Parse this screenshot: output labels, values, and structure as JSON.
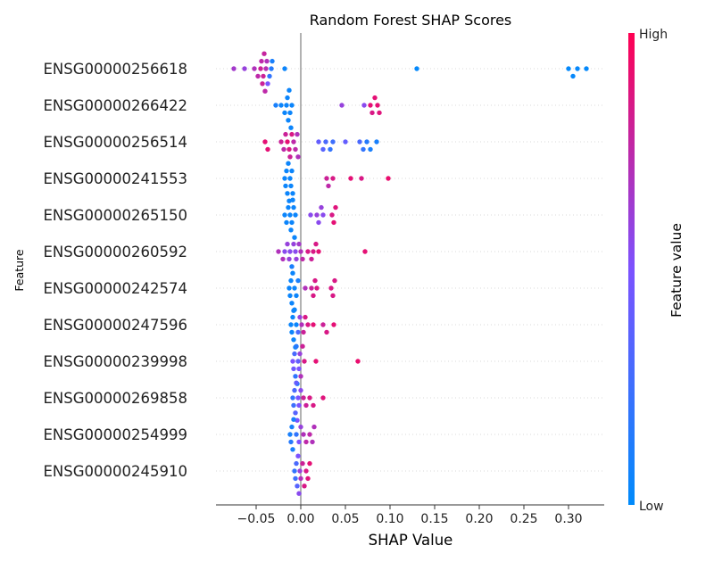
{
  "chart_data": {
    "type": "scatter",
    "title": "Random Forest SHAP Scores",
    "xlabel": "SHAP Value",
    "ylabel": "Feature",
    "xlim": [
      -0.095,
      0.34
    ],
    "xticks": [
      -0.05,
      0.0,
      0.05,
      0.1,
      0.15,
      0.2,
      0.25,
      0.3
    ],
    "xtick_labels": [
      "−0.05",
      "0.00",
      "0.05",
      "0.10",
      "0.15",
      "0.20",
      "0.25",
      "0.30"
    ],
    "colorbar": {
      "label": "Feature value",
      "high": "High",
      "low": "Low",
      "low_color": "#008bfb",
      "high_color": "#ff0052"
    },
    "baseline_x": 0.0,
    "grid": false,
    "features": [
      {
        "name": "ENSG00000256618",
        "points": [
          [
            -0.075,
            0.65
          ],
          [
            -0.063,
            0.6
          ],
          [
            -0.052,
            0.7
          ],
          [
            -0.048,
            0.75
          ],
          [
            -0.045,
            0.8
          ],
          [
            -0.044,
            0.75
          ],
          [
            -0.043,
            0.8
          ],
          [
            -0.042,
            0.8
          ],
          [
            -0.041,
            0.78
          ],
          [
            -0.04,
            0.75
          ],
          [
            -0.039,
            0.72
          ],
          [
            -0.038,
            0.7
          ],
          [
            -0.037,
            0.5
          ],
          [
            -0.035,
            0.2
          ],
          [
            -0.033,
            0.15
          ],
          [
            -0.032,
            0.1
          ],
          [
            -0.018,
            0.05
          ],
          [
            0.13,
            0.02
          ],
          [
            0.3,
            0.02
          ],
          [
            0.305,
            0.03
          ],
          [
            0.31,
            0.03
          ],
          [
            0.32,
            0.02
          ]
        ]
      },
      {
        "name": "ENSG00000266422",
        "points": [
          [
            -0.028,
            0.1
          ],
          [
            -0.022,
            0.05
          ],
          [
            -0.018,
            0.05
          ],
          [
            -0.016,
            0.05
          ],
          [
            -0.015,
            0.05
          ],
          [
            -0.014,
            0.05
          ],
          [
            -0.013,
            0.05
          ],
          [
            -0.012,
            0.05
          ],
          [
            -0.011,
            0.05
          ],
          [
            -0.01,
            0.05
          ],
          [
            0.046,
            0.6
          ],
          [
            0.071,
            0.55
          ],
          [
            0.078,
            0.9
          ],
          [
            0.08,
            0.85
          ],
          [
            0.083,
            0.9
          ],
          [
            0.086,
            0.9
          ],
          [
            0.088,
            0.88
          ]
        ]
      },
      {
        "name": "ENSG00000256514",
        "points": [
          [
            -0.04,
            0.9
          ],
          [
            -0.037,
            0.9
          ],
          [
            -0.022,
            0.8
          ],
          [
            -0.019,
            0.75
          ],
          [
            -0.017,
            0.8
          ],
          [
            -0.015,
            0.9
          ],
          [
            -0.013,
            0.85
          ],
          [
            -0.012,
            0.8
          ],
          [
            -0.01,
            0.85
          ],
          [
            -0.008,
            0.75
          ],
          [
            -0.006,
            0.75
          ],
          [
            -0.004,
            0.7
          ],
          [
            -0.003,
            0.7
          ],
          [
            0.02,
            0.4
          ],
          [
            0.025,
            0.35
          ],
          [
            0.028,
            0.3
          ],
          [
            0.033,
            0.2
          ],
          [
            0.036,
            0.25
          ],
          [
            0.05,
            0.4
          ],
          [
            0.066,
            0.3
          ],
          [
            0.07,
            0.2
          ],
          [
            0.074,
            0.15
          ],
          [
            0.078,
            0.1
          ],
          [
            0.085,
            0.1
          ]
        ]
      },
      {
        "name": "ENSG00000241553",
        "points": [
          [
            -0.018,
            0.05
          ],
          [
            -0.017,
            0.05
          ],
          [
            -0.016,
            0.05
          ],
          [
            -0.015,
            0.05
          ],
          [
            -0.014,
            0.05
          ],
          [
            -0.013,
            0.05
          ],
          [
            -0.012,
            0.05
          ],
          [
            -0.011,
            0.05
          ],
          [
            -0.01,
            0.05
          ],
          [
            -0.009,
            0.05
          ],
          [
            0.029,
            0.8
          ],
          [
            0.031,
            0.75
          ],
          [
            0.036,
            0.85
          ],
          [
            0.056,
            0.9
          ],
          [
            0.068,
            0.85
          ],
          [
            0.098,
            0.92
          ]
        ]
      },
      {
        "name": "ENSG00000265150",
        "points": [
          [
            -0.018,
            0.05
          ],
          [
            -0.016,
            0.05
          ],
          [
            -0.014,
            0.05
          ],
          [
            -0.012,
            0.05
          ],
          [
            -0.011,
            0.05
          ],
          [
            -0.01,
            0.05
          ],
          [
            -0.009,
            0.05
          ],
          [
            -0.008,
            0.05
          ],
          [
            -0.007,
            0.05
          ],
          [
            -0.006,
            0.05
          ],
          [
            0.011,
            0.55
          ],
          [
            0.018,
            0.6
          ],
          [
            0.02,
            0.55
          ],
          [
            0.023,
            0.6
          ],
          [
            0.025,
            0.55
          ],
          [
            0.035,
            0.85
          ],
          [
            0.037,
            0.9
          ],
          [
            0.039,
            0.88
          ]
        ]
      },
      {
        "name": "ENSG00000260592",
        "points": [
          [
            -0.025,
            0.7
          ],
          [
            -0.02,
            0.7
          ],
          [
            -0.018,
            0.55
          ],
          [
            -0.015,
            0.6
          ],
          [
            -0.013,
            0.6
          ],
          [
            -0.012,
            0.55
          ],
          [
            -0.01,
            0.1
          ],
          [
            -0.008,
            0.6
          ],
          [
            -0.006,
            0.55
          ],
          [
            -0.005,
            0.6
          ],
          [
            -0.002,
            0.65
          ],
          [
            0.0,
            0.7
          ],
          [
            0.002,
            0.75
          ],
          [
            0.008,
            0.85
          ],
          [
            0.012,
            0.8
          ],
          [
            0.014,
            0.85
          ],
          [
            0.017,
            0.85
          ],
          [
            0.02,
            0.9
          ],
          [
            0.072,
            0.9
          ]
        ]
      },
      {
        "name": "ENSG00000242574",
        "points": [
          [
            -0.013,
            0.05
          ],
          [
            -0.012,
            0.05
          ],
          [
            -0.011,
            0.05
          ],
          [
            -0.01,
            0.05
          ],
          [
            -0.009,
            0.05
          ],
          [
            -0.008,
            0.05
          ],
          [
            -0.007,
            0.05
          ],
          [
            -0.005,
            0.05
          ],
          [
            -0.003,
            0.1
          ],
          [
            0.005,
            0.7
          ],
          [
            0.012,
            0.8
          ],
          [
            0.014,
            0.85
          ],
          [
            0.016,
            0.85
          ],
          [
            0.018,
            0.85
          ],
          [
            0.034,
            0.85
          ],
          [
            0.036,
            0.85
          ],
          [
            0.038,
            0.85
          ]
        ]
      },
      {
        "name": "ENSG00000247596",
        "points": [
          [
            -0.011,
            0.05
          ],
          [
            -0.01,
            0.05
          ],
          [
            -0.009,
            0.05
          ],
          [
            -0.008,
            0.05
          ],
          [
            -0.007,
            0.05
          ],
          [
            -0.006,
            0.05
          ],
          [
            -0.005,
            0.05
          ],
          [
            -0.003,
            0.3
          ],
          [
            -0.001,
            0.6
          ],
          [
            0.001,
            0.7
          ],
          [
            0.003,
            0.8
          ],
          [
            0.005,
            0.85
          ],
          [
            0.008,
            0.85
          ],
          [
            0.014,
            0.9
          ],
          [
            0.025,
            0.8
          ],
          [
            0.029,
            0.85
          ],
          [
            0.037,
            0.9
          ]
        ]
      },
      {
        "name": "ENSG00000239998",
        "points": [
          [
            -0.009,
            0.5
          ],
          [
            -0.008,
            0.45
          ],
          [
            -0.007,
            0.3
          ],
          [
            -0.006,
            0.2
          ],
          [
            -0.005,
            0.15
          ],
          [
            -0.004,
            0.1
          ],
          [
            -0.003,
            0.4
          ],
          [
            -0.002,
            0.5
          ],
          [
            -0.001,
            0.6
          ],
          [
            0.0,
            0.7
          ],
          [
            0.002,
            0.8
          ],
          [
            0.004,
            0.85
          ],
          [
            0.017,
            0.9
          ],
          [
            0.064,
            0.92
          ]
        ]
      },
      {
        "name": "ENSG00000269858",
        "points": [
          [
            -0.009,
            0.2
          ],
          [
            -0.008,
            0.25
          ],
          [
            -0.007,
            0.3
          ],
          [
            -0.006,
            0.35
          ],
          [
            -0.005,
            0.4
          ],
          [
            -0.004,
            0.5
          ],
          [
            -0.003,
            0.5
          ],
          [
            -0.002,
            0.5
          ],
          [
            0.0,
            0.55
          ],
          [
            0.003,
            0.8
          ],
          [
            0.006,
            0.8
          ],
          [
            0.01,
            0.85
          ],
          [
            0.014,
            0.85
          ],
          [
            0.025,
            0.88
          ]
        ]
      },
      {
        "name": "ENSG00000254999",
        "points": [
          [
            -0.012,
            0.1
          ],
          [
            -0.011,
            0.15
          ],
          [
            -0.01,
            0.1
          ],
          [
            -0.009,
            0.1
          ],
          [
            -0.008,
            0.1
          ],
          [
            -0.005,
            0.2
          ],
          [
            -0.002,
            0.5
          ],
          [
            0.0,
            0.6
          ],
          [
            0.003,
            0.7
          ],
          [
            0.006,
            0.75
          ],
          [
            0.01,
            0.75
          ],
          [
            0.013,
            0.7
          ],
          [
            0.015,
            0.7
          ]
        ]
      },
      {
        "name": "ENSG00000245910",
        "points": [
          [
            -0.007,
            0.2
          ],
          [
            -0.006,
            0.25
          ],
          [
            -0.005,
            0.3
          ],
          [
            -0.004,
            0.35
          ],
          [
            -0.003,
            0.5
          ],
          [
            -0.002,
            0.55
          ],
          [
            -0.001,
            0.6
          ],
          [
            0.0,
            0.7
          ],
          [
            0.002,
            0.8
          ],
          [
            0.004,
            0.85
          ],
          [
            0.006,
            0.85
          ],
          [
            0.008,
            0.88
          ],
          [
            0.01,
            0.9
          ]
        ]
      }
    ]
  }
}
